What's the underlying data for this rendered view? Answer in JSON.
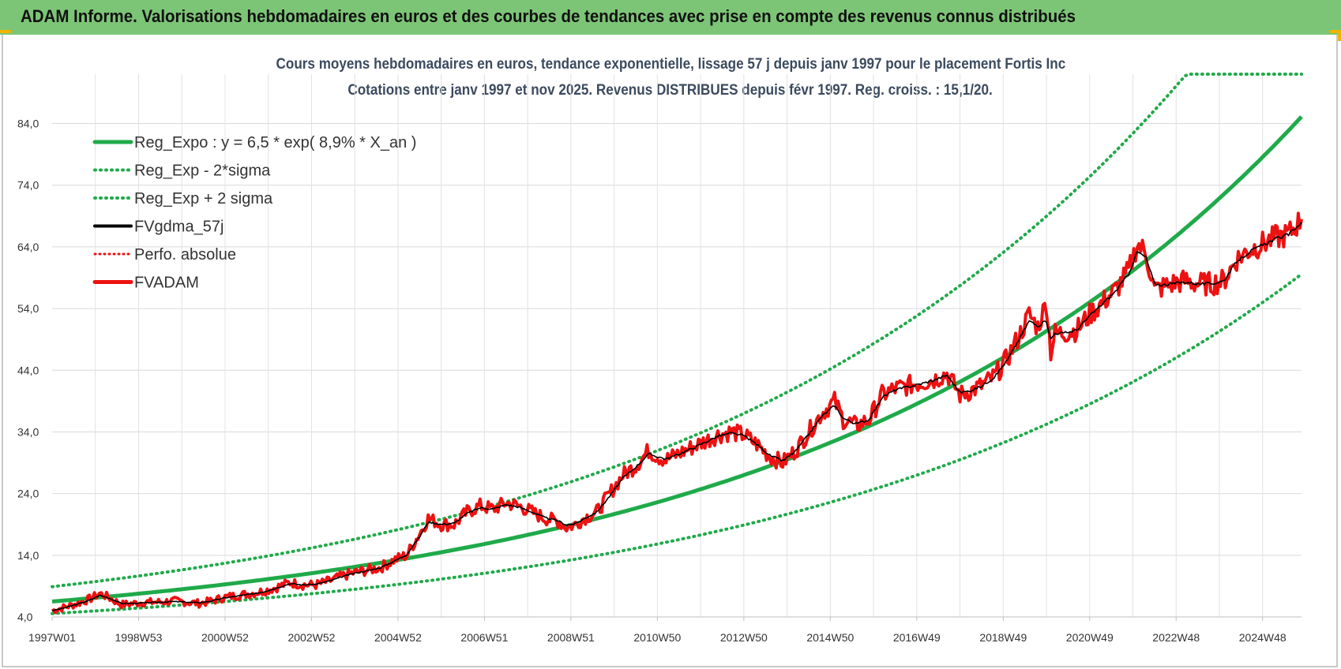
{
  "page": {
    "banner_title": "ADAM Informe. Valorisations hebdomadaires en euros et des courbes de tendances avec prise en compte des revenus connus distribués",
    "colors": {
      "banner": "#7cc576",
      "trend": "#1faa4a",
      "black_line": "#000000",
      "red_line": "#ee1111",
      "perf_dotted": "#ee1111"
    }
  },
  "chart_data": {
    "type": "line",
    "title_line1": "Cours moyens hebdomadaires en euros, tendance exponentielle, lissage 57 j depuis janv 1997  pour le placement Fortis Inc",
    "title_line2": "Cotations entre janv 1997 et nov 2025. Revenus  DISTRIBUES depuis févr 1997. Reg. croiss. : 15,1/20.",
    "x_tick_labels": [
      "1997W01",
      "1998W53",
      "2000W52",
      "2002W52",
      "2004W52",
      "2006W51",
      "2008W51",
      "2010W50",
      "2012W50",
      "2014W50",
      "2016W49",
      "2018W49",
      "2020W49",
      "2022W48",
      "2024W48"
    ],
    "x_tick_years": [
      1997.0,
      1999.0,
      2001.0,
      2003.0,
      2005.0,
      2007.0,
      2009.0,
      2011.0,
      2013.0,
      2015.0,
      2017.0,
      2019.0,
      2021.0,
      2023.0,
      2025.0
    ],
    "x_range_years": [
      1997.0,
      2025.9
    ],
    "y_tick_labels": [
      "4,0",
      "14,0",
      "24,0",
      "34,0",
      "44,0",
      "54,0",
      "64,0",
      "74,0",
      "84,0"
    ],
    "y_ticks": [
      4,
      14,
      24,
      34,
      44,
      54,
      64,
      74,
      84
    ],
    "ylim": [
      4,
      92
    ],
    "grid": true,
    "legend_position": "top-left",
    "legend": [
      {
        "label": "Reg_Expo : y = 6,5 * exp( 8,9% *  X_an )",
        "style": "solid-green"
      },
      {
        "label": "Reg_Exp - 2*sigma",
        "style": "dotted-green"
      },
      {
        "label": "Reg_Exp + 2 sigma",
        "style": "dotted-green"
      },
      {
        "label": "FVgdma_57j",
        "style": "solid-black"
      },
      {
        "label": "Perfo. absolue",
        "style": "dotted-red"
      },
      {
        "label": "FVADAM",
        "style": "solid-red"
      }
    ],
    "trend": {
      "a": 6.5,
      "growth": 0.089,
      "lower_factor": 0.7,
      "upper_factor": 1.37
    },
    "series_fvadam": {
      "x": [
        1997.0,
        1997.3,
        1997.6,
        1997.9,
        1998.1,
        1998.3,
        1998.6,
        1998.9,
        1999.2,
        1999.5,
        1999.8,
        2000.1,
        2000.4,
        2000.7,
        2001.0,
        2001.3,
        2001.6,
        2001.9,
        2002.2,
        2002.5,
        2002.8,
        2003.1,
        2003.4,
        2003.7,
        2004.0,
        2004.3,
        2004.6,
        2004.9,
        2005.2,
        2005.5,
        2005.7,
        2006.0,
        2006.3,
        2006.6,
        2006.9,
        2007.2,
        2007.5,
        2007.8,
        2008.1,
        2008.4,
        2008.7,
        2008.9,
        2009.1,
        2009.3,
        2009.6,
        2009.9,
        2010.2,
        2010.5,
        2010.8,
        2011.0,
        2011.2,
        2011.5,
        2011.8,
        2012.1,
        2012.4,
        2012.7,
        2013.0,
        2013.3,
        2013.6,
        2013.9,
        2014.2,
        2014.5,
        2014.8,
        2015.1,
        2015.3,
        2015.6,
        2015.9,
        2016.2,
        2016.5,
        2016.8,
        2017.1,
        2017.4,
        2017.7,
        2018.0,
        2018.2,
        2018.5,
        2018.8,
        2019.1,
        2019.4,
        2019.6,
        2019.8,
        2020.0,
        2020.1,
        2020.2,
        2020.4,
        2020.7,
        2021.0,
        2021.3,
        2021.6,
        2021.9,
        2022.1,
        2022.3,
        2022.5,
        2022.7,
        2022.9,
        2023.2,
        2023.5,
        2023.8,
        2024.1,
        2024.4,
        2024.7,
        2025.0,
        2025.3,
        2025.6,
        2025.9
      ],
      "y": [
        5.0,
        5.6,
        6.2,
        7.0,
        7.8,
        7.2,
        6.0,
        6.2,
        6.4,
        6.4,
        6.6,
        6.4,
        6.2,
        6.6,
        7.2,
        7.5,
        7.8,
        8.2,
        8.8,
        9.6,
        9.2,
        9.2,
        9.8,
        10.6,
        11.2,
        11.6,
        12.0,
        13.2,
        14.0,
        17.5,
        20.0,
        19.0,
        19.0,
        21.0,
        22.0,
        21.5,
        22.5,
        22.0,
        21.0,
        20.0,
        19.5,
        18.5,
        19.0,
        20.0,
        21.0,
        24.0,
        27.0,
        28.5,
        31.0,
        30.0,
        29.5,
        30.5,
        31.5,
        32.5,
        33.5,
        34.0,
        33.5,
        32.0,
        30.0,
        29.0,
        31.0,
        34.0,
        37.0,
        39.0,
        36.0,
        35.0,
        36.0,
        40.0,
        41.0,
        41.5,
        42.0,
        42.5,
        43.5,
        40.0,
        40.5,
        41.5,
        43.0,
        46.0,
        50.0,
        53.0,
        51.0,
        55.0,
        47.0,
        50.0,
        50.0,
        50.5,
        53.0,
        55.0,
        57.0,
        60.0,
        64.5,
        63.0,
        57.0,
        57.5,
        58.0,
        58.5,
        58.0,
        58.0,
        58.5,
        62.0,
        63.5,
        64.5,
        65.5,
        66.0,
        68.5
      ]
    },
    "series_gdma_57j": {
      "x": [
        1997.0,
        1997.3,
        1997.6,
        1997.9,
        1998.1,
        1998.3,
        1998.6,
        1998.9,
        1999.2,
        1999.5,
        1999.8,
        2000.1,
        2000.4,
        2000.7,
        2001.0,
        2001.3,
        2001.6,
        2001.9,
        2002.2,
        2002.5,
        2002.8,
        2003.1,
        2003.4,
        2003.7,
        2004.0,
        2004.3,
        2004.6,
        2004.9,
        2005.2,
        2005.5,
        2005.7,
        2006.0,
        2006.3,
        2006.6,
        2006.9,
        2007.2,
        2007.5,
        2007.8,
        2008.1,
        2008.4,
        2008.7,
        2008.9,
        2009.1,
        2009.3,
        2009.6,
        2009.9,
        2010.2,
        2010.5,
        2010.8,
        2011.0,
        2011.2,
        2011.5,
        2011.8,
        2012.1,
        2012.4,
        2012.7,
        2013.0,
        2013.3,
        2013.6,
        2013.9,
        2014.2,
        2014.5,
        2014.8,
        2015.1,
        2015.3,
        2015.6,
        2015.9,
        2016.2,
        2016.5,
        2016.8,
        2017.1,
        2017.4,
        2017.7,
        2018.0,
        2018.2,
        2018.5,
        2018.8,
        2019.1,
        2019.4,
        2019.6,
        2019.8,
        2020.0,
        2020.1,
        2020.2,
        2020.4,
        2020.7,
        2021.0,
        2021.3,
        2021.6,
        2021.9,
        2022.1,
        2022.3,
        2022.5,
        2022.7,
        2022.9,
        2023.2,
        2023.5,
        2023.8,
        2024.1,
        2024.4,
        2024.7,
        2025.0,
        2025.3,
        2025.6,
        2025.9
      ],
      "y": [
        5.0,
        5.5,
        6.1,
        6.8,
        7.5,
        7.1,
        6.2,
        6.2,
        6.3,
        6.4,
        6.5,
        6.4,
        6.3,
        6.6,
        7.1,
        7.4,
        7.7,
        8.1,
        8.7,
        9.4,
        9.2,
        9.3,
        9.8,
        10.5,
        11.1,
        11.5,
        12.0,
        13.0,
        14.1,
        17.0,
        19.4,
        19.0,
        19.2,
        20.8,
        21.7,
        21.5,
        22.2,
        21.8,
        21.0,
        20.1,
        19.6,
        18.9,
        19.1,
        19.9,
        21.0,
        23.6,
        26.5,
        28.3,
        30.4,
        30.0,
        29.6,
        30.4,
        31.3,
        32.3,
        33.3,
        33.8,
        33.4,
        32.0,
        30.2,
        29.3,
        30.9,
        33.6,
        36.5,
        38.3,
        36.2,
        35.3,
        36.0,
        39.6,
        40.8,
        41.3,
        41.8,
        42.4,
        43.2,
        40.4,
        40.6,
        41.4,
        42.9,
        45.7,
        49.4,
        52.0,
        51.2,
        52.0,
        49.0,
        50.0,
        50.0,
        50.5,
        52.8,
        54.8,
        56.8,
        59.6,
        63.2,
        62.3,
        58.0,
        57.8,
        58.0,
        58.3,
        58.0,
        58.0,
        58.5,
        61.6,
        63.2,
        64.3,
        65.3,
        66.0,
        68.0
      ]
    }
  }
}
